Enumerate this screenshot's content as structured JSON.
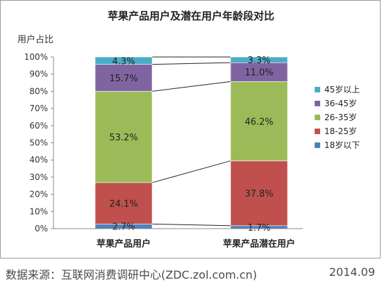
{
  "chart_data": {
    "type": "bar",
    "stacked": true,
    "title": "苹果产品用户及潜在用户年龄段对比",
    "ylabel": "用户占比",
    "xlabel": "",
    "ylim": [
      0,
      100
    ],
    "yticks": [
      "0%",
      "10%",
      "20%",
      "30%",
      "40%",
      "50%",
      "60%",
      "70%",
      "80%",
      "90%",
      "100%"
    ],
    "categories": [
      "苹果产品用户",
      "苹果产品潜在用户"
    ],
    "series": [
      {
        "name": "18岁以下",
        "color": "#4f81bd",
        "values": [
          2.7,
          1.7
        ],
        "labels": [
          "2.7%",
          "1.7%"
        ]
      },
      {
        "name": "18-25岁",
        "color": "#c0504d",
        "values": [
          24.1,
          37.8
        ],
        "labels": [
          "24.1%",
          "37.8%"
        ]
      },
      {
        "name": "26-35岁",
        "color": "#9bbb59",
        "values": [
          53.2,
          46.2
        ],
        "labels": [
          "53.2%",
          "46.2%"
        ]
      },
      {
        "name": "36-45岁",
        "color": "#8064a2",
        "values": [
          15.7,
          11.0
        ],
        "labels": [
          "15.7%",
          "11.0%"
        ]
      },
      {
        "name": "45岁以上",
        "color": "#4bacc6",
        "values": [
          4.3,
          3.3
        ],
        "labels": [
          "4.3%",
          "3.3%"
        ]
      }
    ],
    "legend": "right",
    "grid": false
  },
  "footer": {
    "source": "数据来源：互联网消费调研中心(ZDC.zol.com.cn)",
    "date": "2014.09"
  }
}
